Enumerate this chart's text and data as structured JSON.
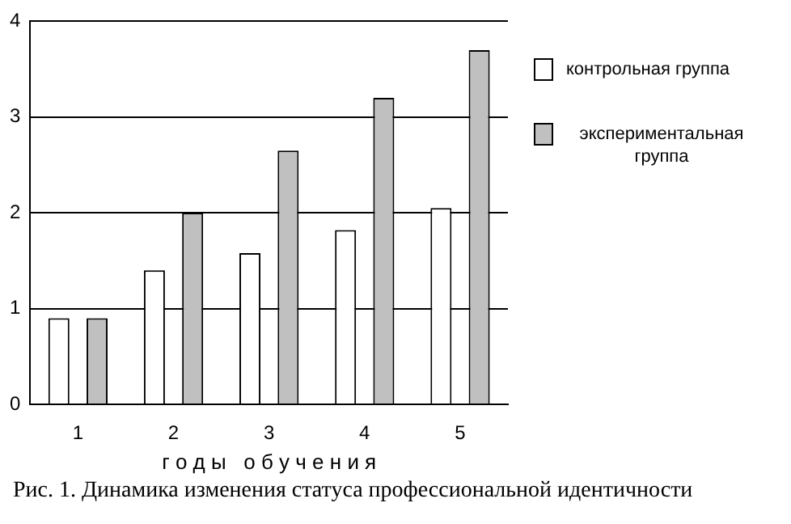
{
  "chart_data": {
    "type": "bar",
    "xlabel": "г о д ы   о б у ч е н и я",
    "categories": [
      "1",
      "2",
      "3",
      "4",
      "5"
    ],
    "series": [
      {
        "name": "контрольная группа",
        "color": "#ffffff",
        "values": [
          0.9,
          1.4,
          1.58,
          1.82,
          2.05
        ]
      },
      {
        "name": "экспериментальная группа",
        "color": "#c0c0c0",
        "values": [
          0.9,
          2.0,
          2.65,
          3.2,
          3.7
        ]
      }
    ],
    "ylim": [
      0,
      4
    ],
    "yticks": [
      0,
      1,
      2,
      3,
      4
    ],
    "grid": "y",
    "legend": "right",
    "annotations": [
      "Рис. 1. Динамика изменения статуса профессиональной идентичности"
    ]
  }
}
